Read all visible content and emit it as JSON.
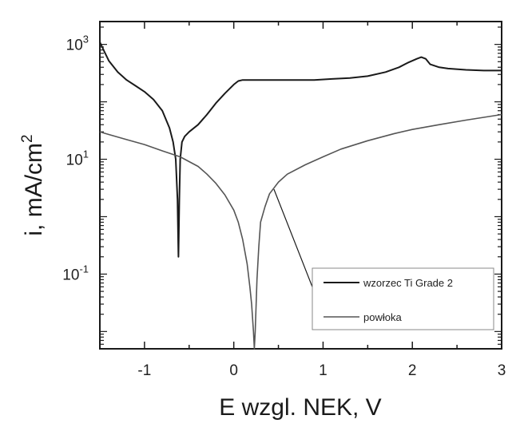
{
  "chart_data": {
    "type": "line",
    "xlabel": "E wzgl. NEK, V",
    "ylabel_base": "i, mA/cm",
    "ylabel_exp": "2",
    "xlim": [
      -1.5,
      3.0
    ],
    "ylog": true,
    "ylim": [
      0.005,
      2500
    ],
    "x_ticks": [
      -1,
      0,
      1,
      2,
      3
    ],
    "x_tick_labels": [
      "-1",
      "0",
      "1",
      "2",
      "3"
    ],
    "y_ticks": [
      {
        "value": 1000,
        "base": "10",
        "exp": "3"
      },
      {
        "value": 10,
        "base": "10",
        "exp": "1"
      },
      {
        "value": 0.1,
        "base": "10",
        "exp": "-1"
      }
    ],
    "grid": false,
    "legend_position": "bottom-right",
    "series": [
      {
        "name": "wzorzec Ti Grade 2",
        "color": "#1a1a1a",
        "x": [
          -1.5,
          -1.45,
          -1.4,
          -1.3,
          -1.2,
          -1.1,
          -1.0,
          -0.9,
          -0.8,
          -0.72,
          -0.68,
          -0.65,
          -0.63,
          -0.62,
          -0.61,
          -0.6,
          -0.58,
          -0.55,
          -0.5,
          -0.4,
          -0.3,
          -0.2,
          -0.1,
          0.0,
          0.05,
          0.1,
          0.2,
          0.3,
          0.5,
          0.7,
          0.9,
          1.1,
          1.3,
          1.5,
          1.7,
          1.85,
          1.95,
          2.05,
          2.1,
          2.15,
          2.2,
          2.3,
          2.4,
          2.6,
          2.8,
          3.0
        ],
        "y": [
          1100,
          750,
          520,
          330,
          240,
          190,
          150,
          110,
          70,
          35,
          20,
          10,
          2,
          0.2,
          2,
          10,
          20,
          25,
          30,
          40,
          60,
          95,
          140,
          200,
          230,
          240,
          240,
          240,
          240,
          240,
          240,
          250,
          260,
          280,
          330,
          400,
          480,
          560,
          600,
          560,
          450,
          400,
          380,
          360,
          350,
          350
        ]
      },
      {
        "name": "powłoka",
        "color": "#555555",
        "x": [
          -1.5,
          -1.4,
          -1.2,
          -1.0,
          -0.8,
          -0.6,
          -0.4,
          -0.3,
          -0.2,
          -0.1,
          0.0,
          0.05,
          0.1,
          0.15,
          0.18,
          0.2,
          0.22,
          0.23,
          0.24,
          0.26,
          0.28,
          0.3,
          0.35,
          0.4,
          0.5,
          0.6,
          0.8,
          1.0,
          1.2,
          1.5,
          1.8,
          2.0,
          2.3,
          2.6,
          3.0
        ],
        "y": [
          30,
          27,
          22,
          18,
          14,
          11,
          7.5,
          5.5,
          3.8,
          2.4,
          1.3,
          0.8,
          0.4,
          0.15,
          0.06,
          0.03,
          0.01,
          0.005,
          0.01,
          0.08,
          0.3,
          0.8,
          1.5,
          2.5,
          4,
          5.5,
          8,
          11,
          15,
          21,
          28,
          33,
          40,
          48,
          60
        ]
      }
    ],
    "annotation": {
      "type": "leader-line",
      "from": [
        0.45,
        3.0
      ],
      "to": [
        1.0,
        0.02
      ]
    }
  }
}
